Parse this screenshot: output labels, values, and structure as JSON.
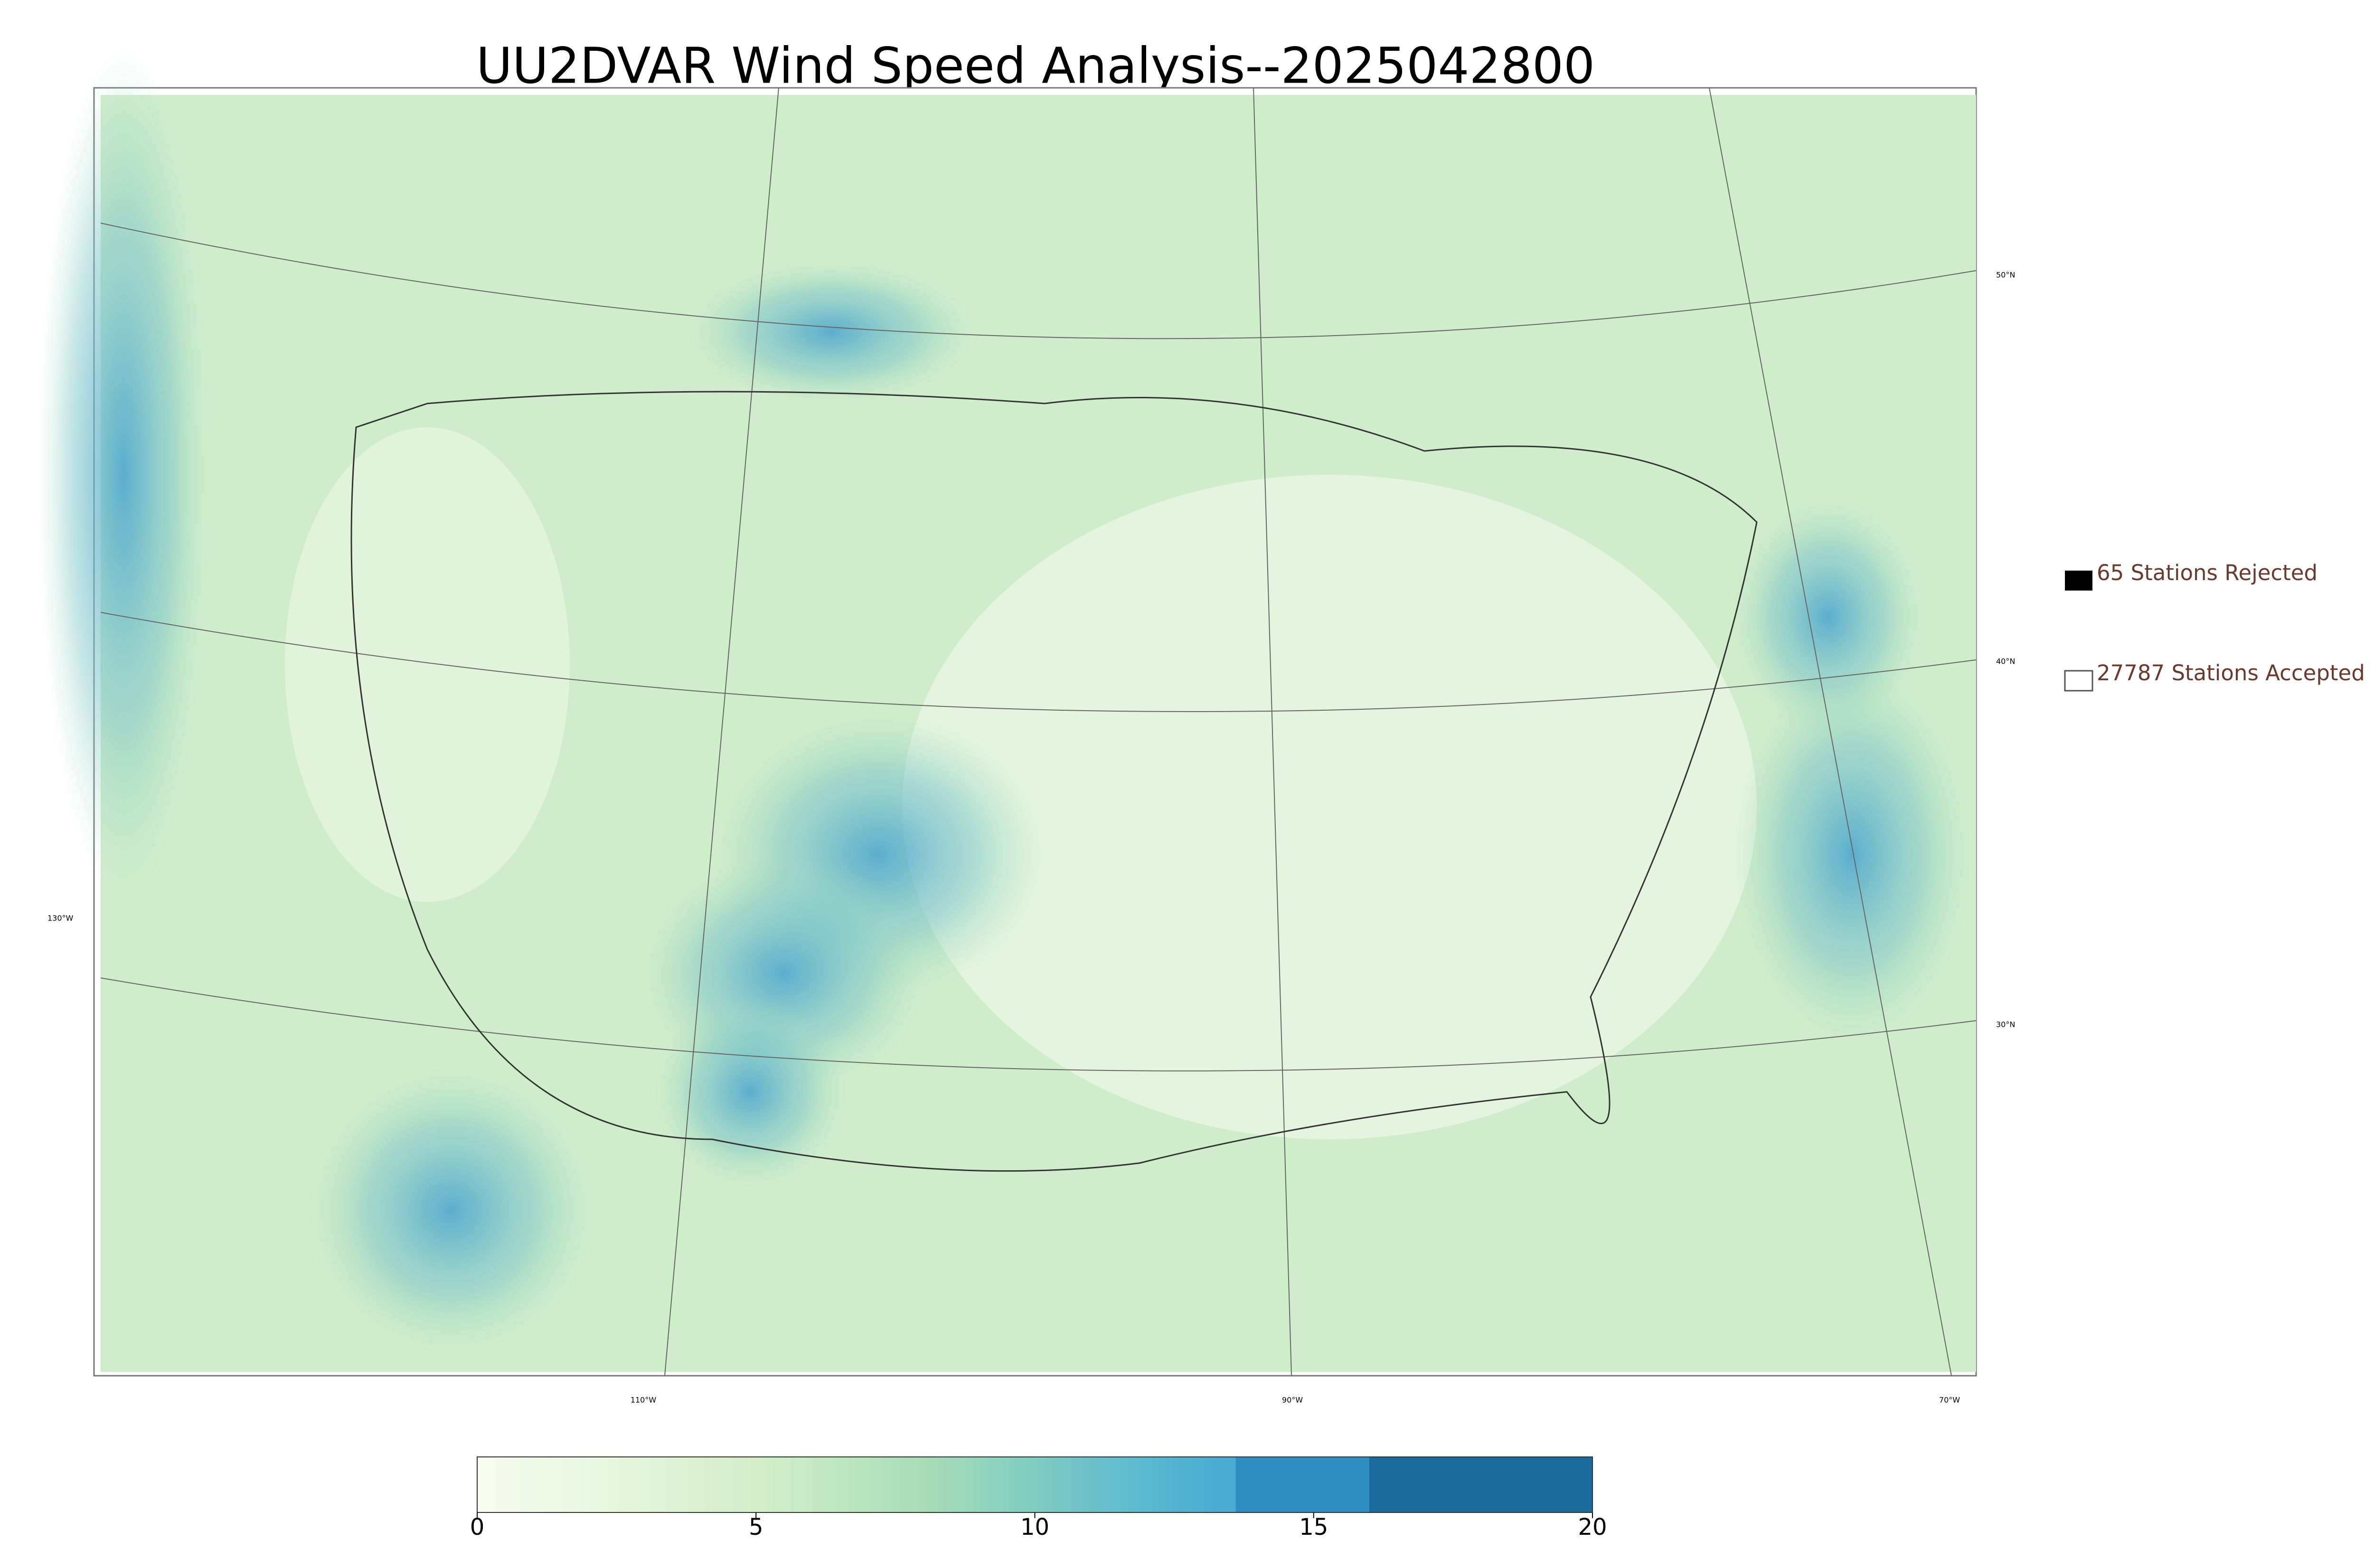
{
  "title": "UU2DVAR Wind Speed Analysis--2025042800",
  "map": {
    "lat_labels": [
      "50°N",
      "40°N",
      "30°N"
    ],
    "lon_labels": [
      "130°W",
      "110°W",
      "90°W",
      "70°W"
    ]
  },
  "legend": [
    "65 Stations Rejected",
    "27787 Stations Accepted"
  ],
  "colorbar": {
    "lim": [
      0,
      20
    ],
    "ticks": [
      0,
      5,
      10,
      15,
      20
    ]
  }
}
